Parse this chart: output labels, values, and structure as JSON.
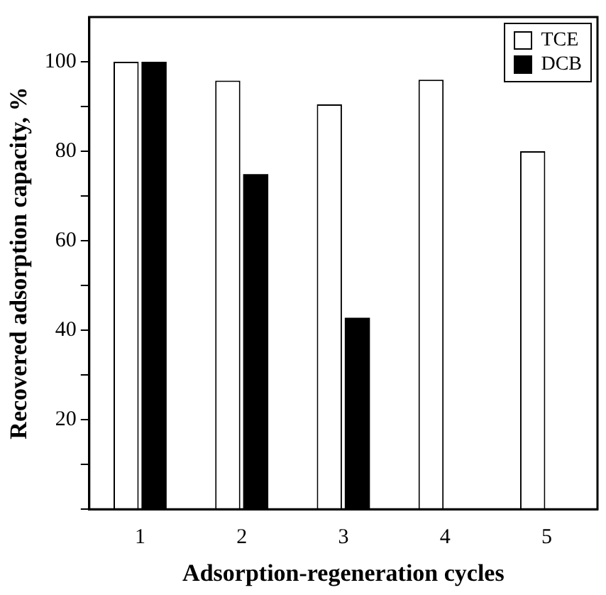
{
  "chart_data": {
    "type": "bar",
    "xlabel": "Adsorption-regeneration cycles",
    "ylabel": "Recovered adsorption capacity, %",
    "categories": [
      "1",
      "2",
      "3",
      "4",
      "5"
    ],
    "series": [
      {
        "name": "TCE",
        "color": "#ffffff",
        "values": [
          100,
          95.8,
          90.5,
          96,
          80
        ]
      },
      {
        "name": "DCB",
        "color": "#000000",
        "values": [
          100,
          74.9,
          42.8,
          null,
          null
        ]
      }
    ],
    "ylim": [
      0,
      110
    ],
    "yticks": [
      {
        "value": 0,
        "label": null
      },
      {
        "value": 10,
        "label": null
      },
      20,
      {
        "value": 30,
        "label": null
      },
      40,
      {
        "value": 50,
        "label": null
      },
      60,
      {
        "value": 70,
        "label": null
      },
      80,
      {
        "value": 90,
        "label": null
      },
      100
    ],
    "legend": "top right",
    "grid": false
  }
}
